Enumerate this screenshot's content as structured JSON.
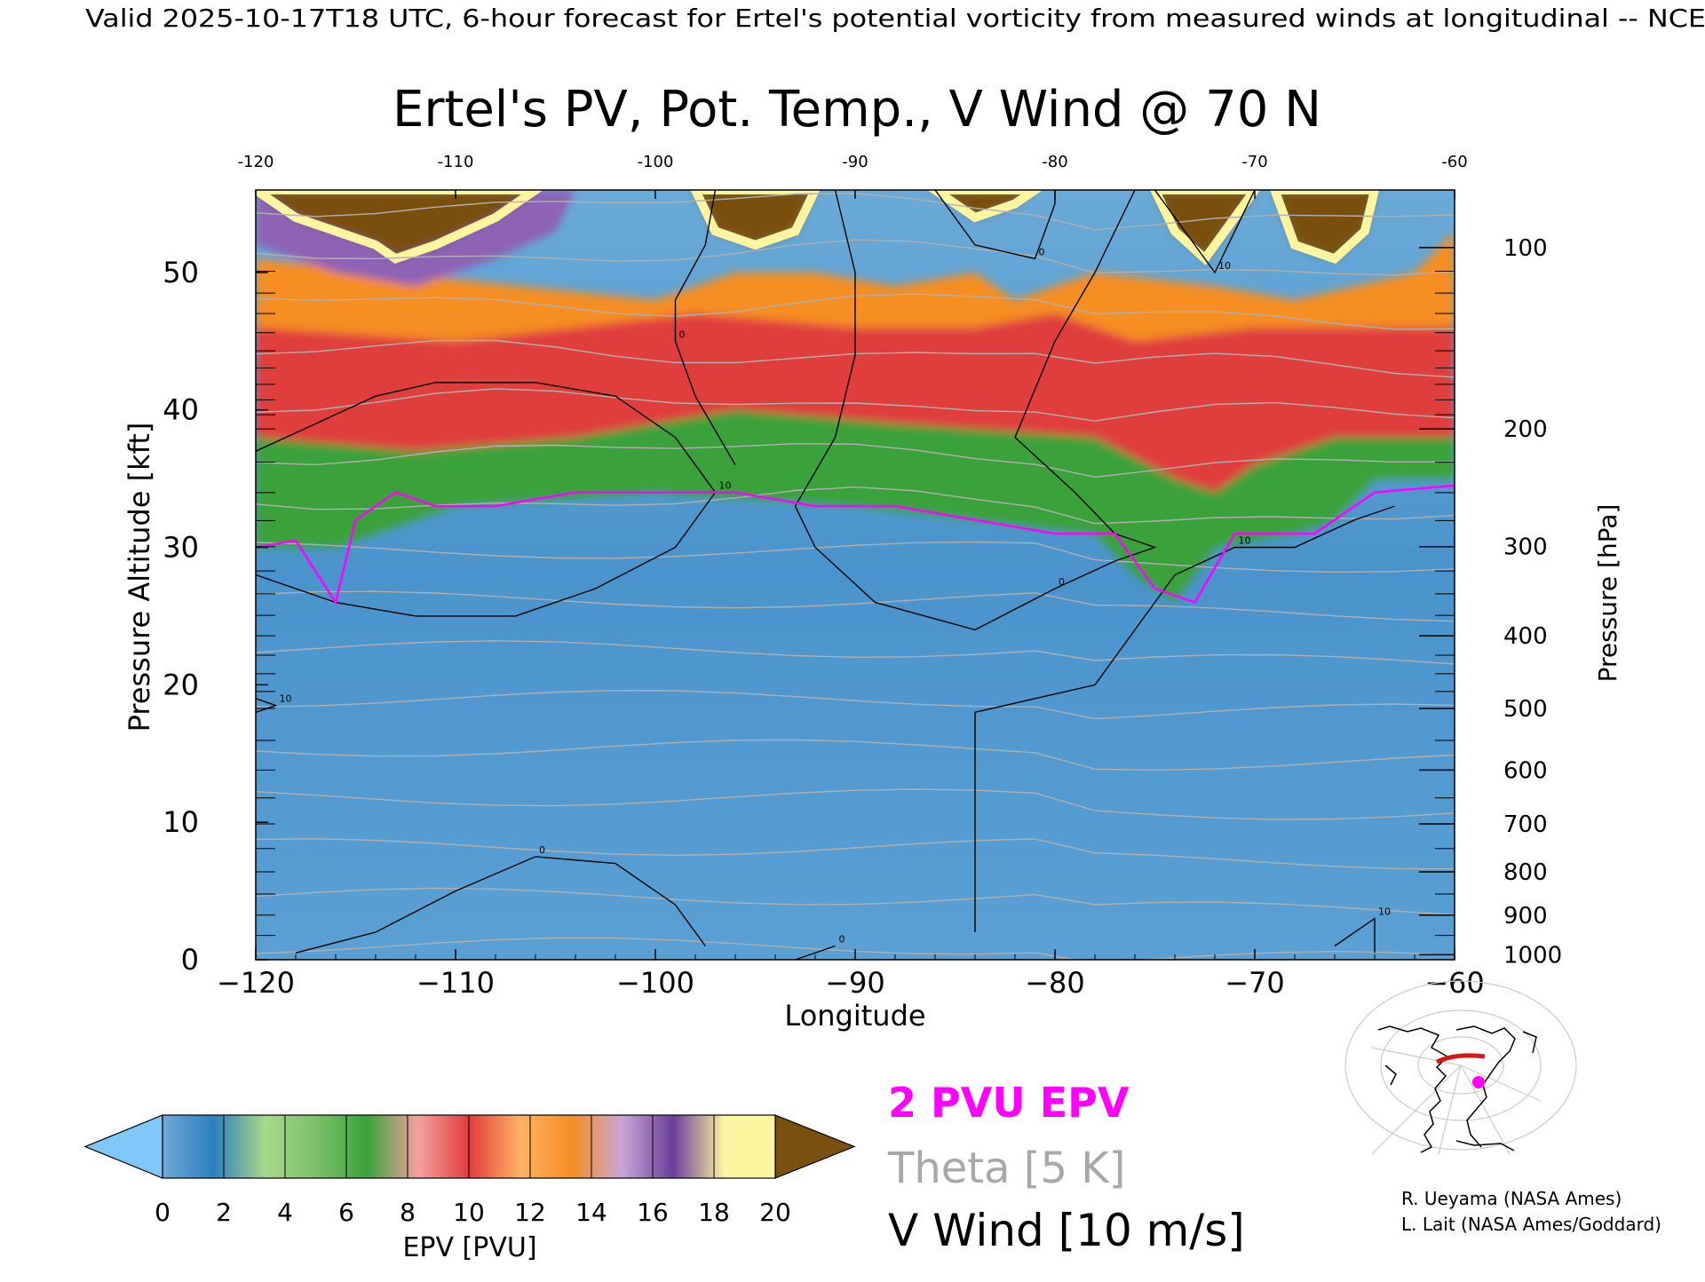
{
  "header": {
    "valid_line": "Valid 2025-10-17T18 UTC, 6-hour forecast for Ertel's potential vorticity from measured winds at longitudinal -- NCE"
  },
  "chart_data": {
    "type": "heatmap",
    "title": "Ertel's PV, Pot. Temp., V Wind @ 70 N",
    "xlabel": "Longitude",
    "ylabel": "Pressure Altitude [kft]",
    "y2label": "Pressure [hPa]",
    "xlim": [
      -120,
      -60
    ],
    "ylim": [
      0,
      56
    ],
    "x_ticks": [
      -120,
      -110,
      -100,
      -90,
      -80,
      -70,
      -60
    ],
    "x_tick_labels": [
      "−120",
      "−110",
      "−100",
      "−90",
      "−80",
      "−70",
      "−60"
    ],
    "top_tick_labels": [
      "-120",
      "-110",
      "-100",
      "-90",
      "-80",
      "-70",
      "-60"
    ],
    "y_ticks": [
      0,
      10,
      20,
      30,
      40,
      50
    ],
    "y_tick_labels": [
      "0",
      "10",
      "20",
      "30",
      "40",
      "50"
    ],
    "pressure_ticks": [
      {
        "hpa": 100,
        "label": "100"
      },
      {
        "hpa": 200,
        "label": "200"
      },
      {
        "hpa": 300,
        "label": "300"
      },
      {
        "hpa": 400,
        "label": "400"
      },
      {
        "hpa": 500,
        "label": "500"
      },
      {
        "hpa": 600,
        "label": "600"
      },
      {
        "hpa": 700,
        "label": "700"
      },
      {
        "hpa": 800,
        "label": "800"
      },
      {
        "hpa": 900,
        "label": "900"
      },
      {
        "hpa": 1000,
        "label": "1000"
      }
    ],
    "epv_bands": [
      {
        "name": "stratosphere-cap",
        "color": "#7a5010",
        "points": [
          [
            -120,
            56
          ],
          [
            -118,
            54
          ],
          [
            -116,
            53
          ],
          [
            -114,
            52
          ],
          [
            -113,
            51
          ],
          [
            -111,
            52
          ],
          [
            -108,
            54
          ],
          [
            -106,
            56
          ]
        ]
      },
      {
        "name": "stratosphere-cap",
        "color": "#7a5010",
        "points": [
          [
            -98,
            56
          ],
          [
            -97,
            53
          ],
          [
            -95,
            52
          ],
          [
            -93,
            53
          ],
          [
            -92,
            56
          ]
        ]
      },
      {
        "name": "stratosphere-cap",
        "color": "#7a5010",
        "points": [
          [
            -86,
            56
          ],
          [
            -84,
            54
          ],
          [
            -82,
            55
          ],
          [
            -81,
            56
          ]
        ]
      },
      {
        "name": "stratosphere-cap",
        "color": "#7a5010",
        "points": [
          [
            -75,
            56
          ],
          [
            -74,
            53
          ],
          [
            -72.5,
            51
          ],
          [
            -71,
            54
          ],
          [
            -70,
            56
          ]
        ]
      },
      {
        "name": "stratosphere-cap",
        "color": "#7a5010",
        "points": [
          [
            -69,
            56
          ],
          [
            -68,
            52
          ],
          [
            -66,
            51
          ],
          [
            -64.5,
            53
          ],
          [
            -64,
            56
          ]
        ]
      },
      {
        "name": "purple",
        "color": "#8e62b4",
        "points": [
          [
            -120,
            56
          ],
          [
            -120,
            52
          ],
          [
            -116,
            50
          ],
          [
            -112,
            49
          ],
          [
            -108,
            51
          ],
          [
            -105,
            53
          ],
          [
            -104,
            56
          ]
        ]
      },
      {
        "name": "orange",
        "color": "#f68e22",
        "points": [
          [
            -120,
            51
          ],
          [
            -100,
            48
          ],
          [
            -96,
            50
          ],
          [
            -92,
            50
          ],
          [
            -88,
            49
          ],
          [
            -84,
            50
          ],
          [
            -82,
            48
          ],
          [
            -78,
            50
          ],
          [
            -72,
            49
          ],
          [
            -68,
            48
          ],
          [
            -62,
            50
          ],
          [
            -60,
            53
          ],
          [
            -60,
            44
          ],
          [
            -120,
            44
          ]
        ]
      },
      {
        "name": "red",
        "color": "#e03c3c",
        "points": [
          [
            -120,
            46
          ],
          [
            -110,
            45
          ],
          [
            -104,
            46
          ],
          [
            -98,
            47
          ],
          [
            -90,
            46
          ],
          [
            -84,
            46
          ],
          [
            -80,
            47
          ],
          [
            -76,
            45
          ],
          [
            -70,
            46
          ],
          [
            -64,
            46
          ],
          [
            -60,
            46
          ],
          [
            -60,
            38
          ],
          [
            -66,
            38
          ],
          [
            -70,
            36
          ],
          [
            -72,
            34
          ],
          [
            -74,
            35
          ],
          [
            -78,
            38
          ],
          [
            -88,
            39
          ],
          [
            -96,
            40
          ],
          [
            -104,
            38
          ],
          [
            -112,
            37
          ],
          [
            -120,
            37
          ]
        ]
      },
      {
        "name": "green",
        "color": "#3aa23a",
        "points": [
          [
            -120,
            38
          ],
          [
            -112,
            37
          ],
          [
            -104,
            38
          ],
          [
            -96,
            40
          ],
          [
            -88,
            39
          ],
          [
            -78,
            38
          ],
          [
            -74,
            35
          ],
          [
            -72,
            34
          ],
          [
            -70,
            36
          ],
          [
            -66,
            38
          ],
          [
            -60,
            38
          ],
          [
            -60,
            35
          ],
          [
            -64,
            35
          ],
          [
            -66,
            32
          ],
          [
            -68,
            31
          ],
          [
            -72,
            30
          ],
          [
            -74,
            26
          ],
          [
            -76,
            28
          ],
          [
            -78,
            31
          ],
          [
            -90,
            33
          ],
          [
            -100,
            34
          ],
          [
            -110,
            33
          ],
          [
            -116,
            30
          ],
          [
            -120,
            30
          ]
        ]
      }
    ],
    "epv_2pvu_contour": [
      [
        -120,
        30
      ],
      [
        -118,
        30.5
      ],
      [
        -116,
        26
      ],
      [
        -115,
        32
      ],
      [
        -113,
        34
      ],
      [
        -111,
        33
      ],
      [
        -108,
        33
      ],
      [
        -104,
        34
      ],
      [
        -100,
        34
      ],
      [
        -96,
        34
      ],
      [
        -92,
        33
      ],
      [
        -88,
        33
      ],
      [
        -84,
        32
      ],
      [
        -80,
        31
      ],
      [
        -77,
        31
      ],
      [
        -75,
        27
      ],
      [
        -73,
        26
      ],
      [
        -71,
        31
      ],
      [
        -67,
        31
      ],
      [
        -64,
        34
      ],
      [
        -60,
        34.5
      ]
    ],
    "theta_isentropes_K": [
      270,
      280,
      290,
      300,
      310,
      320,
      330,
      340,
      350,
      360,
      370,
      380,
      390,
      400,
      410,
      420
    ],
    "v_wind_contours": [
      {
        "label": "10",
        "points": [
          [
            -120,
            37
          ],
          [
            -117,
            39
          ],
          [
            -114,
            41
          ],
          [
            -111,
            42
          ],
          [
            -106,
            42
          ],
          [
            -102,
            41
          ],
          [
            -99,
            38
          ],
          [
            -97,
            34
          ],
          [
            -99,
            30
          ],
          [
            -103,
            27
          ],
          [
            -107,
            25
          ],
          [
            -112,
            25
          ],
          [
            -116,
            26
          ],
          [
            -120,
            28
          ]
        ]
      },
      {
        "label": "0",
        "points": [
          [
            -97,
            56
          ],
          [
            -97.5,
            52
          ],
          [
            -99,
            48
          ],
          [
            -99,
            45
          ],
          [
            -98,
            41
          ],
          [
            -96,
            36
          ]
        ]
      },
      {
        "label": "0",
        "points": [
          [
            -91,
            56
          ],
          [
            -90,
            50
          ],
          [
            -90,
            44
          ],
          [
            -91,
            38
          ],
          [
            -93,
            33
          ],
          [
            -92,
            30
          ],
          [
            -89,
            26
          ],
          [
            -84,
            24
          ],
          [
            -80,
            27
          ],
          [
            -77,
            29
          ],
          [
            -75,
            30
          ],
          [
            -77,
            31
          ],
          [
            -79,
            34
          ],
          [
            -82,
            38
          ],
          [
            -80,
            45
          ],
          [
            -78,
            50
          ],
          [
            -76,
            56
          ]
        ]
      },
      {
        "label": "0",
        "points": [
          [
            -86,
            56
          ],
          [
            -84,
            52
          ],
          [
            -81,
            51
          ],
          [
            -80,
            55
          ],
          [
            -80,
            56
          ]
        ]
      },
      {
        "label": "10",
        "points": [
          [
            -84,
            2
          ],
          [
            -84,
            18
          ],
          [
            -78,
            20
          ],
          [
            -74,
            28
          ],
          [
            -71,
            30
          ],
          [
            -68,
            30
          ],
          [
            -65,
            32
          ],
          [
            -63,
            33
          ]
        ]
      },
      {
        "label": "10",
        "points": [
          [
            -120,
            18
          ],
          [
            -119,
            18.5
          ],
          [
            -120,
            19
          ]
        ]
      },
      {
        "label": "10",
        "points": [
          [
            -66,
            1
          ],
          [
            -64,
            3
          ],
          [
            -64,
            0.5
          ]
        ]
      },
      {
        "label": "0",
        "points": [
          [
            -118,
            0.5
          ],
          [
            -114,
            2
          ],
          [
            -110,
            5
          ],
          [
            -106,
            7.5
          ],
          [
            -102,
            7
          ],
          [
            -99,
            4
          ],
          [
            -97.5,
            1
          ]
        ]
      },
      {
        "label": "0",
        "points": [
          [
            -93,
            0
          ],
          [
            -91,
            1
          ]
        ]
      },
      {
        "label": "10",
        "points": [
          [
            -75,
            56
          ],
          [
            -72,
            50
          ],
          [
            -70,
            56
          ]
        ]
      }
    ],
    "colorbar": {
      "label": "EPV [PVU]",
      "ticks": [
        "0",
        "2",
        "4",
        "6",
        "8",
        "10",
        "12",
        "14",
        "16",
        "18",
        "20"
      ],
      "under_color": "#7fc8f8",
      "over_color": "#7a5010",
      "colors": [
        "#6fa8d6",
        "#2d7fbf",
        "#a8d88a",
        "#7cc06a",
        "#3aa23a",
        "#f4a0a0",
        "#e03c3c",
        "#ffb366",
        "#f68e22",
        "#c8a6d6",
        "#6a3d9a",
        "#fdf5a0"
      ]
    },
    "legend": {
      "pv_label": "2 PVU EPV",
      "pv_color": "#ff00ff",
      "theta_label": "Theta [5 K]",
      "theta_color": "#a8a8a8",
      "wind_label": "V Wind [10 m/s]",
      "wind_color": "#000000"
    }
  },
  "credits": {
    "line1": "R. Ueyama (NASA Ames)",
    "line2": "L. Lait (NASA Ames/Goddard)"
  },
  "colors": {
    "troposphere": "#5aa0d4",
    "troposphere_dark": "#2d7fbf",
    "theta_line": "#b0b0b0",
    "pv_contour": "#ff00ff"
  }
}
